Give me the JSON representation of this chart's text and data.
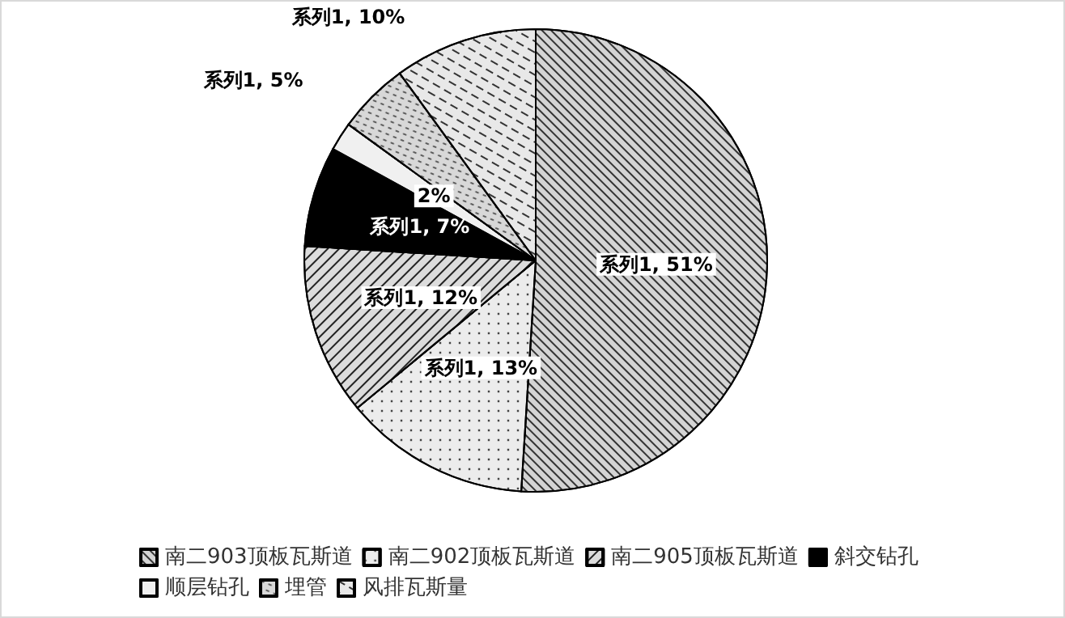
{
  "chart_data": {
    "type": "pie",
    "categories": [
      "南二903顶板瓦斯道",
      "南二902顶板瓦斯道",
      "南二905顶板瓦斯道",
      "斜交钻孔",
      "顺层钻孔",
      "埋管",
      "风排瓦斯量"
    ],
    "values": [
      51,
      13,
      12,
      7,
      2,
      5,
      10
    ],
    "value_labels": [
      "系列1, 51%",
      "系列1, 13%",
      "系列1, 12%",
      "系列1, 7%",
      "2%",
      "系列1, 5%",
      "系列1, 10%"
    ],
    "colors": [
      "#d4d4d4",
      "#ececec",
      "#dcdcdc",
      "#000000",
      "#f0f0f0",
      "#d8d8d8",
      "#e8e8e8"
    ],
    "legend": "bottom"
  }
}
